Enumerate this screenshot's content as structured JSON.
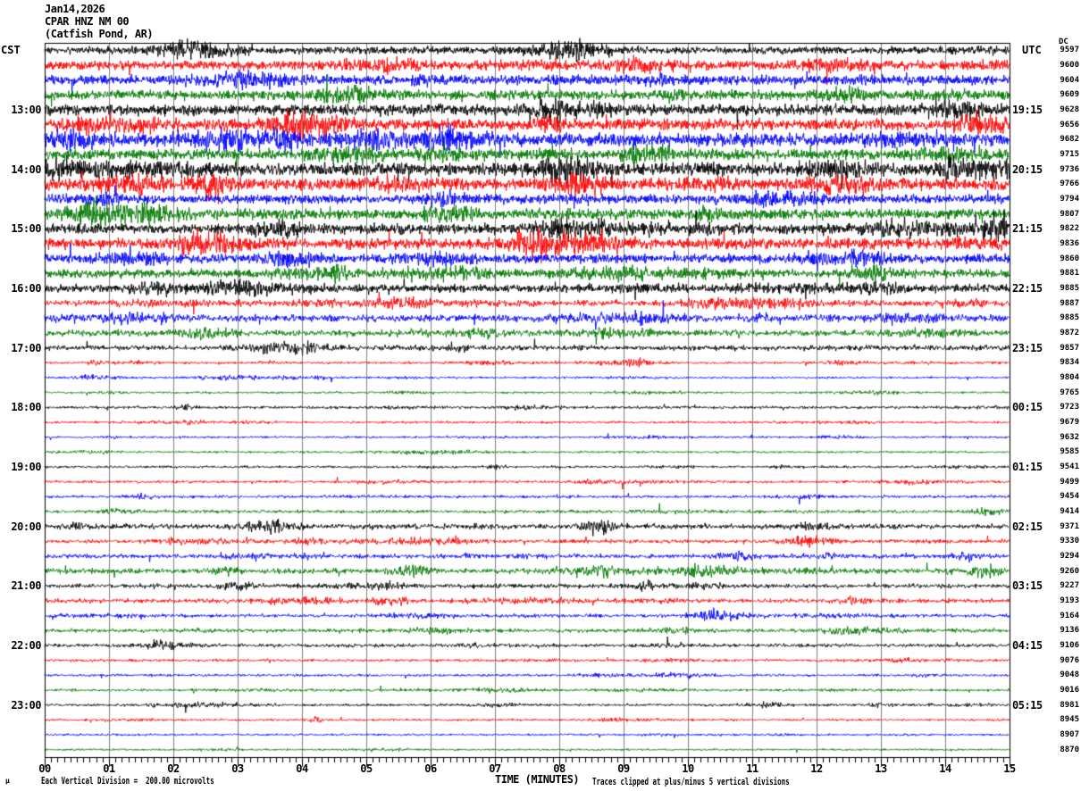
{
  "header": {
    "date": "Jan14,2026",
    "station": "CPAR HNZ NM 00",
    "location": "(Catfish Pond, AR)"
  },
  "left_axis": {
    "tz": "CST",
    "hours": [
      {
        "row": 4,
        "label": "13:00"
      },
      {
        "row": 8,
        "label": "14:00"
      },
      {
        "row": 12,
        "label": "15:00"
      },
      {
        "row": 16,
        "label": "16:00"
      },
      {
        "row": 20,
        "label": "17:00"
      },
      {
        "row": 24,
        "label": "18:00"
      },
      {
        "row": 28,
        "label": "19:00"
      },
      {
        "row": 32,
        "label": "20:00"
      },
      {
        "row": 36,
        "label": "21:00"
      },
      {
        "row": 40,
        "label": "22:00"
      },
      {
        "row": 44,
        "label": "23:00"
      }
    ]
  },
  "right_axis": {
    "tz": "UTC",
    "dc_label": "DC",
    "hours": [
      {
        "row": 4,
        "label": "19:15"
      },
      {
        "row": 8,
        "label": "20:15"
      },
      {
        "row": 12,
        "label": "21:15"
      },
      {
        "row": 16,
        "label": "22:15"
      },
      {
        "row": 20,
        "label": "23:15"
      },
      {
        "row": 24,
        "label": "00:15"
      },
      {
        "row": 28,
        "label": "01:15"
      },
      {
        "row": 32,
        "label": "02:15"
      },
      {
        "row": 36,
        "label": "03:15"
      },
      {
        "row": 40,
        "label": "04:15"
      },
      {
        "row": 44,
        "label": "05:15"
      }
    ]
  },
  "x_axis": {
    "title": "TIME (MINUTES)",
    "tick_labels": [
      "00",
      "01",
      "02",
      "03",
      "04",
      "05",
      "06",
      "07",
      "08",
      "09",
      "10",
      "11",
      "12",
      "13",
      "14",
      "15"
    ],
    "minutes": 15,
    "minor_ticks_per_minute": 10
  },
  "footer": {
    "micro_glyph": "µ",
    "scale_note": "Each Vertical Division =  200.00 microvolts",
    "clip_note": "Traces clipped at plus/minus 5 vertical divisions"
  },
  "colors": {
    "black": "#000000",
    "red": "#ff0000",
    "blue": "#0000ff",
    "green": "#007800",
    "grid": "#808080",
    "frame": "#000000",
    "background": "#ffffff"
  },
  "chart_data": {
    "type": "line",
    "description": "Helicorder seismogram, 48 traces of 15 minutes each, 12:00 CST Jan14,2026 through 23:45 CST; trace colors cycle black/red/blue/green; DC column gives each trace's DC offset in microvolts; amp is approximate peak noise amplitude in screen pixels; bursts are [minute, width_px, extra_gain] transient events",
    "xlim_minutes": [
      0,
      15
    ],
    "rows": [
      {
        "cst": "12:00",
        "color": "black",
        "dc": 9597,
        "amp": 4.2,
        "bursts": [
          [
            2.2,
            30,
            1.2
          ],
          [
            8.0,
            35,
            1.1
          ]
        ]
      },
      {
        "cst": "12:15",
        "color": "red",
        "dc": 9600,
        "amp": 4.8,
        "bursts": [
          [
            5.2,
            40,
            1.1
          ]
        ]
      },
      {
        "cst": "12:30",
        "color": "blue",
        "dc": 9604,
        "amp": 5.4,
        "bursts": [
          [
            3.1,
            50,
            1.0
          ]
        ]
      },
      {
        "cst": "12:45",
        "color": "green",
        "dc": 9609,
        "amp": 5.4,
        "bursts": [
          [
            4.6,
            40,
            1.0
          ]
        ]
      },
      {
        "cst": "13:00",
        "color": "black",
        "dc": 9628,
        "amp": 6.0,
        "bursts": [
          [
            7.9,
            25,
            1.5
          ]
        ]
      },
      {
        "cst": "13:15",
        "color": "red",
        "dc": 9656,
        "amp": 6.4,
        "bursts": [
          [
            4.2,
            45,
            1.0
          ],
          [
            14.6,
            25,
            1.3
          ]
        ]
      },
      {
        "cst": "13:30",
        "color": "blue",
        "dc": 9682,
        "amp": 7.2,
        "bursts": [
          [
            3.0,
            40,
            1.2
          ],
          [
            6.3,
            30,
            1.0
          ]
        ]
      },
      {
        "cst": "13:45",
        "color": "green",
        "dc": 9715,
        "amp": 5.8,
        "bursts": [
          [
            4.8,
            35,
            1.1
          ]
        ]
      },
      {
        "cst": "14:00",
        "color": "black",
        "dc": 9736,
        "amp": 6.8,
        "bursts": [
          [
            8.1,
            35,
            1.6
          ],
          [
            14.2,
            25,
            1.4
          ]
        ]
      },
      {
        "cst": "14:15",
        "color": "red",
        "dc": 9766,
        "amp": 6.4,
        "bursts": [
          [
            2.6,
            20,
            1.5
          ],
          [
            8.3,
            30,
            1.2
          ]
        ]
      },
      {
        "cst": "14:30",
        "color": "blue",
        "dc": 9794,
        "amp": 5.0,
        "bursts": [
          [
            11.4,
            40,
            1.2
          ]
        ]
      },
      {
        "cst": "14:45",
        "color": "green",
        "dc": 9807,
        "amp": 5.8,
        "bursts": [
          [
            1.6,
            35,
            1.2
          ]
        ]
      },
      {
        "cst": "15:00",
        "color": "black",
        "dc": 9822,
        "amp": 5.6,
        "bursts": [
          [
            14.8,
            18,
            1.8
          ],
          [
            3.6,
            30,
            1.1
          ]
        ]
      },
      {
        "cst": "15:15",
        "color": "red",
        "dc": 9836,
        "amp": 6.0,
        "bursts": [
          [
            2.4,
            30,
            1.2
          ]
        ]
      },
      {
        "cst": "15:30",
        "color": "blue",
        "dc": 9860,
        "amp": 5.0,
        "bursts": [
          [
            12.6,
            35,
            1.2
          ]
        ]
      },
      {
        "cst": "15:45",
        "color": "green",
        "dc": 9881,
        "amp": 4.5,
        "bursts": [
          [
            12.9,
            25,
            1.5
          ]
        ]
      },
      {
        "cst": "16:00",
        "color": "black",
        "dc": 9885,
        "amp": 4.5,
        "bursts": [
          [
            3.1,
            30,
            1.2
          ],
          [
            13.0,
            25,
            1.3
          ]
        ]
      },
      {
        "cst": "16:15",
        "color": "red",
        "dc": 9887,
        "amp": 3.5,
        "bursts": [
          [
            5.5,
            30,
            1.2
          ]
        ]
      },
      {
        "cst": "16:30",
        "color": "blue",
        "dc": 9885,
        "amp": 4.0,
        "bursts": [
          [
            9.2,
            30,
            1.2
          ]
        ]
      },
      {
        "cst": "16:45",
        "color": "green",
        "dc": 9872,
        "amp": 3.5,
        "bursts": [
          [
            2.5,
            25,
            1.3
          ]
        ]
      },
      {
        "cst": "17:00",
        "color": "black",
        "dc": 9857,
        "amp": 3.0,
        "bursts": [
          [
            6.4,
            10,
            1.5
          ]
        ]
      },
      {
        "cst": "17:15",
        "color": "red",
        "dc": 9834,
        "amp": 1.4,
        "bursts": [
          [
            0.8,
            8,
            2.5
          ],
          [
            3.5,
            10,
            1.6
          ],
          [
            9.2,
            12,
            1.5
          ]
        ]
      },
      {
        "cst": "17:30",
        "color": "blue",
        "dc": 9804,
        "amp": 1.2,
        "bursts": [
          [
            0.7,
            10,
            1.6
          ]
        ]
      },
      {
        "cst": "17:45",
        "color": "green",
        "dc": 9765,
        "amp": 1.2,
        "bursts": [
          [
            1.0,
            12,
            1.4
          ]
        ]
      },
      {
        "cst": "18:00",
        "color": "black",
        "dc": 9723,
        "amp": 1.6,
        "bursts": [
          [
            2.2,
            10,
            1.8
          ],
          [
            7.5,
            25,
            1.2
          ]
        ]
      },
      {
        "cst": "18:15",
        "color": "red",
        "dc": 9679,
        "amp": 1.3,
        "bursts": [
          [
            2.3,
            12,
            1.5
          ]
        ]
      },
      {
        "cst": "18:30",
        "color": "blue",
        "dc": 9632,
        "amp": 1.2,
        "bursts": []
      },
      {
        "cst": "18:45",
        "color": "green",
        "dc": 9585,
        "amp": 1.2,
        "bursts": []
      },
      {
        "cst": "19:00",
        "color": "black",
        "dc": 9541,
        "amp": 1.3,
        "bursts": [
          [
            7.0,
            15,
            1.4
          ]
        ]
      },
      {
        "cst": "19:15",
        "color": "red",
        "dc": 9499,
        "amp": 1.5,
        "bursts": [
          [
            8.5,
            15,
            1.4
          ]
        ]
      },
      {
        "cst": "19:30",
        "color": "blue",
        "dc": 9454,
        "amp": 1.6,
        "bursts": [
          [
            1.5,
            15,
            1.4
          ]
        ]
      },
      {
        "cst": "19:45",
        "color": "green",
        "dc": 9414,
        "amp": 1.8,
        "bursts": [
          [
            14.6,
            12,
            1.6
          ]
        ]
      },
      {
        "cst": "20:00",
        "color": "black",
        "dc": 9371,
        "amp": 2.8,
        "bursts": [
          [
            8.6,
            18,
            3.2
          ],
          [
            3.5,
            25,
            1.6
          ],
          [
            12.0,
            20,
            1.5
          ]
        ]
      },
      {
        "cst": "20:15",
        "color": "red",
        "dc": 9330,
        "amp": 2.2,
        "bursts": [
          [
            4.1,
            15,
            1.8
          ],
          [
            11.8,
            25,
            1.6
          ]
        ]
      },
      {
        "cst": "20:30",
        "color": "blue",
        "dc": 9294,
        "amp": 2.4,
        "bursts": [
          [
            10.7,
            20,
            1.6
          ],
          [
            14.3,
            15,
            1.6
          ]
        ]
      },
      {
        "cst": "20:45",
        "color": "green",
        "dc": 9260,
        "amp": 3.0,
        "bursts": [
          [
            5.7,
            20,
            1.8
          ],
          [
            8.5,
            25,
            1.8
          ],
          [
            14.6,
            15,
            2.0
          ]
        ]
      },
      {
        "cst": "21:00",
        "color": "black",
        "dc": 9227,
        "amp": 2.4,
        "bursts": [
          [
            3.0,
            20,
            1.6
          ],
          [
            5.3,
            15,
            1.5
          ]
        ]
      },
      {
        "cst": "21:15",
        "color": "red",
        "dc": 9193,
        "amp": 2.4,
        "bursts": [
          [
            5.4,
            20,
            1.5
          ],
          [
            12.6,
            15,
            1.5
          ]
        ]
      },
      {
        "cst": "21:30",
        "color": "blue",
        "dc": 9164,
        "amp": 2.0,
        "bursts": [
          [
            10.4,
            20,
            1.8
          ]
        ]
      },
      {
        "cst": "21:45",
        "color": "green",
        "dc": 9136,
        "amp": 2.2,
        "bursts": [
          [
            9.8,
            20,
            1.5
          ],
          [
            12.4,
            18,
            1.5
          ]
        ]
      },
      {
        "cst": "22:00",
        "color": "black",
        "dc": 9106,
        "amp": 2.0,
        "bursts": [
          [
            1.8,
            15,
            1.5
          ]
        ]
      },
      {
        "cst": "22:15",
        "color": "red",
        "dc": 9076,
        "amp": 1.5,
        "bursts": []
      },
      {
        "cst": "22:30",
        "color": "blue",
        "dc": 9048,
        "amp": 1.4,
        "bursts": []
      },
      {
        "cst": "22:45",
        "color": "green",
        "dc": 9016,
        "amp": 1.5,
        "bursts": []
      },
      {
        "cst": "23:00",
        "color": "black",
        "dc": 8981,
        "amp": 1.4,
        "bursts": [
          [
            13.0,
            12,
            1.5
          ]
        ]
      },
      {
        "cst": "23:15",
        "color": "red",
        "dc": 8945,
        "amp": 1.3,
        "bursts": [
          [
            4.2,
            10,
            2.0
          ]
        ]
      },
      {
        "cst": "23:30",
        "color": "blue",
        "dc": 8907,
        "amp": 1.2,
        "bursts": []
      },
      {
        "cst": "23:45",
        "color": "green",
        "dc": 8870,
        "amp": 1.1,
        "bursts": []
      }
    ]
  }
}
